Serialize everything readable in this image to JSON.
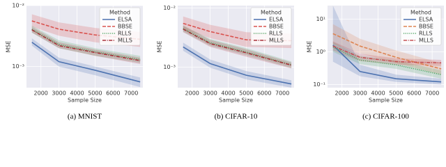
{
  "chart_data": [
    {
      "type": "line",
      "caption": "(a) MNIST",
      "xlabel": "Sample Size",
      "ylabel": "MSE",
      "legend_title": "Method",
      "legend": "upper right",
      "log_y": true,
      "grid": true,
      "x": [
        1500,
        3000,
        5000,
        7500
      ],
      "xlim": [
        1200,
        7650
      ],
      "xticks": [
        2000,
        3000,
        4000,
        5000,
        6000,
        7000
      ],
      "ylim": [
        0.00045,
        0.01
      ],
      "yticks": [
        {
          "value": 0.001,
          "label": "10⁻³"
        },
        {
          "value": 0.01,
          "label": "10⁻²"
        }
      ],
      "series": [
        {
          "name": "ELSA",
          "color": "#4c72b0",
          "dash": "solid",
          "values": [
            0.0025,
            0.0012,
            0.00087,
            0.00056
          ],
          "lower": [
            0.0022,
            0.001,
            0.00072,
            0.00046
          ],
          "upper": [
            0.0029,
            0.0014,
            0.001,
            0.00066
          ]
        },
        {
          "name": "BBSE",
          "color": "#d9534f",
          "dash": "dashed",
          "values": [
            0.0056,
            0.0041,
            0.0033,
            0.0028
          ],
          "lower": [
            0.0045,
            0.0032,
            0.0025,
            0.0021
          ],
          "upper": [
            0.0072,
            0.0053,
            0.0043,
            0.0037
          ]
        },
        {
          "name": "RLLS",
          "color": "#55a868",
          "dash": "dotted",
          "values": [
            0.0041,
            0.0023,
            0.00175,
            0.0013
          ],
          "lower": [
            0.0036,
            0.002,
            0.0015,
            0.00115
          ],
          "upper": [
            0.0047,
            0.0027,
            0.002,
            0.0015
          ]
        },
        {
          "name": "MLLS",
          "color": "#a8323a",
          "dash": "dashdot",
          "values": [
            0.004,
            0.0022,
            0.0017,
            0.00125
          ],
          "lower": [
            0.0036,
            0.002,
            0.0015,
            0.0011
          ],
          "upper": [
            0.0045,
            0.0025,
            0.0019,
            0.0014
          ]
        }
      ]
    },
    {
      "type": "line",
      "caption": "(b) CIFAR-10",
      "xlabel": "Sample Size",
      "ylabel": "MSE",
      "legend_title": "Method",
      "legend": "upper right",
      "log_y": true,
      "grid": true,
      "x": [
        1500,
        3000,
        5000,
        7500
      ],
      "xlim": [
        1200,
        7650
      ],
      "xticks": [
        2000,
        3000,
        4000,
        5000,
        6000,
        7000
      ],
      "ylim": [
        0.00045,
        0.011
      ],
      "yticks": [
        {
          "value": 0.001,
          "label": "10⁻³"
        },
        {
          "value": 0.01,
          "label": "10⁻²"
        }
      ],
      "series": [
        {
          "name": "ELSA",
          "color": "#4c72b0",
          "dash": "solid",
          "values": [
            0.0022,
            0.00115,
            0.00073,
            0.00052
          ],
          "lower": [
            0.0019,
            0.00098,
            0.00062,
            0.00045
          ],
          "upper": [
            0.0026,
            0.00135,
            0.00086,
            0.0006
          ]
        },
        {
          "name": "BBSE",
          "color": "#d9534f",
          "dash": "dashed",
          "values": [
            0.0055,
            0.004,
            0.0029,
            0.0028
          ],
          "lower": [
            0.0044,
            0.0031,
            0.0022,
            0.0021
          ],
          "upper": [
            0.0072,
            0.0052,
            0.0039,
            0.0037
          ]
        },
        {
          "name": "RLLS",
          "color": "#55a868",
          "dash": "dotted",
          "values": [
            0.0045,
            0.0026,
            0.0018,
            0.0011
          ],
          "lower": [
            0.004,
            0.0023,
            0.0016,
            0.00097
          ],
          "upper": [
            0.0051,
            0.003,
            0.0021,
            0.00125
          ]
        },
        {
          "name": "MLLS",
          "color": "#a8323a",
          "dash": "dashdot",
          "values": [
            0.0044,
            0.0025,
            0.00175,
            0.00108
          ],
          "lower": [
            0.0039,
            0.0022,
            0.0015,
            0.00095
          ],
          "upper": [
            0.005,
            0.0029,
            0.002,
            0.0012
          ]
        }
      ]
    },
    {
      "type": "line",
      "caption": "(c) CIFAR-100",
      "xlabel": "Sample Size",
      "ylabel": "MSE",
      "legend_title": "Method",
      "legend": "upper right",
      "log_y": true,
      "grid": true,
      "x": [
        1500,
        3000,
        5000,
        7500
      ],
      "xlim": [
        1200,
        7650
      ],
      "xticks": [
        2000,
        3000,
        4000,
        5000,
        6000,
        7000
      ],
      "ylim": [
        0.08,
        26
      ],
      "yticks": [
        {
          "value": 0.1,
          "label": "10⁻¹"
        },
        {
          "value": 1,
          "label": "10⁰"
        },
        {
          "value": 10,
          "label": "10¹"
        }
      ],
      "series": [
        {
          "name": "ELSA",
          "color": "#4c72b0",
          "dash": "solid",
          "values": [
            1.6,
            0.25,
            0.15,
            0.12
          ],
          "lower": [
            0.5,
            0.18,
            0.12,
            0.1
          ],
          "upper": [
            26,
            0.4,
            0.2,
            0.15
          ]
        },
        {
          "name": "BBSE",
          "color": "#dd8452",
          "dash": "dashed",
          "values": [
            3.6,
            1.5,
            0.68,
            0.3
          ],
          "lower": [
            1.8,
            0.9,
            0.45,
            0.2
          ],
          "upper": [
            7,
            2.5,
            1.1,
            0.45
          ]
        },
        {
          "name": "RLLS",
          "color": "#55a868",
          "dash": "dotted",
          "values": [
            1.4,
            0.56,
            0.4,
            0.2
          ],
          "lower": [
            1,
            0.42,
            0.3,
            0.15
          ],
          "upper": [
            2,
            0.75,
            0.55,
            0.27
          ]
        },
        {
          "name": "MLLS",
          "color": "#c44e52",
          "dash": "dashdot",
          "values": [
            1.5,
            0.68,
            0.5,
            0.46
          ],
          "lower": [
            1.1,
            0.52,
            0.4,
            0.37
          ],
          "upper": [
            2.1,
            0.88,
            0.63,
            0.57
          ]
        }
      ]
    }
  ]
}
